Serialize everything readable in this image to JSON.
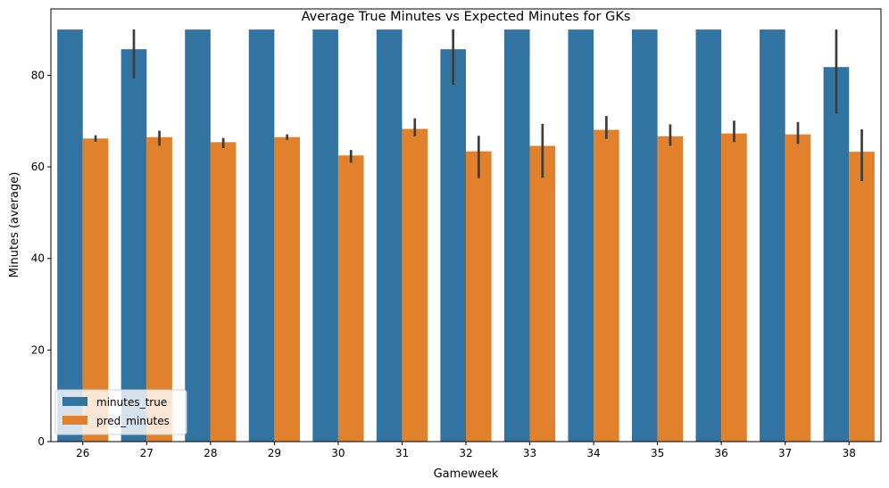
{
  "chart_data": {
    "type": "bar",
    "title": "Average True Minutes vs Expected Minutes for GKs",
    "xlabel": "Gameweek",
    "ylabel": "Minutes (average)",
    "ylim": [
      0,
      94.5
    ],
    "yticks": [
      0,
      20,
      40,
      60,
      80
    ],
    "grid": false,
    "legend_position": "lower-left",
    "categories": [
      "26",
      "27",
      "28",
      "29",
      "30",
      "31",
      "32",
      "33",
      "34",
      "35",
      "36",
      "37",
      "38"
    ],
    "series": [
      {
        "name": "minutes_true",
        "color": "#3274a1",
        "values": [
          90,
          85.7,
          90,
          90,
          90,
          90,
          85.7,
          90,
          90,
          90,
          90,
          90,
          81.8
        ],
        "error_low": [
          90,
          79.3,
          90,
          90,
          90,
          90,
          77.9,
          90,
          90,
          90,
          90,
          90,
          71.6
        ],
        "error_high": [
          90,
          90,
          90,
          90,
          90,
          90,
          90,
          90,
          90,
          90,
          90,
          90,
          90
        ]
      },
      {
        "name": "pred_minutes",
        "color": "#e1812c",
        "values": [
          66.2,
          66.5,
          65.4,
          66.5,
          62.5,
          68.3,
          63.4,
          64.6,
          68.1,
          66.7,
          67.3,
          67.1,
          63.3
        ],
        "error_low": [
          65.5,
          64.6,
          64.1,
          65.9,
          60.9,
          66.7,
          57.5,
          57.6,
          66.1,
          64.6,
          65.4,
          65.0,
          56.9
        ],
        "error_high": [
          66.9,
          67.9,
          66.3,
          67.1,
          63.7,
          70.6,
          66.8,
          69.4,
          71.1,
          69.3,
          70.1,
          69.8,
          68.2
        ]
      }
    ]
  }
}
